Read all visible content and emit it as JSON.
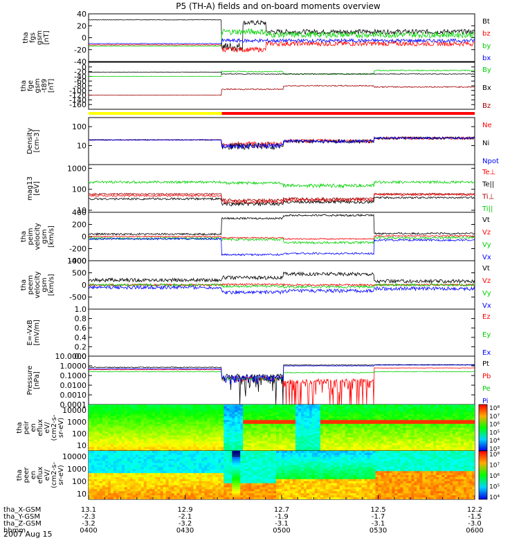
{
  "title": "P5 (TH-A) fields and on-board moments overview",
  "colors": {
    "black": "#000000",
    "red": "#ff0000",
    "green": "#00d000",
    "blue": "#0000ff",
    "darkred": "#a00000",
    "yellow": "#ffff00"
  },
  "chart_data": {
    "type": "line",
    "time_range": [
      "04:00",
      "06:00"
    ],
    "panels": [
      {
        "id": "fgs",
        "ylabel": [
          "tha",
          "fgs",
          "gsm",
          "[nT]"
        ],
        "ylim": [
          -40,
          40
        ],
        "ticks": [
          40,
          20,
          0,
          -20,
          -40
        ],
        "series": [
          {
            "name": "Bt",
            "color": "#000000"
          },
          {
            "name": "bz",
            "color": "#ff0000"
          },
          {
            "name": "by",
            "color": "#00d000"
          },
          {
            "name": "bx",
            "color": "#0000ff"
          }
        ]
      },
      {
        "id": "fge",
        "ylabel": [
          "tha",
          "fge",
          "gsm",
          "-t89",
          "[nT]"
        ],
        "ylim": [
          -180,
          20
        ],
        "ticks": [
          0,
          -20,
          -40,
          -60,
          -80,
          -100,
          -120,
          -140,
          -160
        ],
        "series": [
          {
            "name": "By",
            "color": "#00d000"
          },
          {
            "name": "Bx",
            "color": "#000000"
          },
          {
            "name": "Bz",
            "color": "#a00000"
          }
        ]
      },
      {
        "id": "density",
        "ylabel": [
          "Density",
          "[cm-3]"
        ],
        "ylim": [
          1,
          300
        ],
        "log": true,
        "ticks": [
          100,
          10
        ],
        "series": [
          {
            "name": "Ne",
            "color": "#ff0000"
          },
          {
            "name": "Ni",
            "color": "#000000"
          },
          {
            "name": "Npot",
            "color": "#0000ff"
          }
        ]
      },
      {
        "id": "temp",
        "ylabel": [
          "mag13",
          "[eV]"
        ],
        "ylim": [
          8,
          1500
        ],
        "log": true,
        "ticks": [
          1000,
          100,
          10
        ],
        "series": [
          {
            "name": "Te⊥",
            "color": "#ff0000"
          },
          {
            "name": "Te||",
            "color": "#000000"
          },
          {
            "name": "Ti⊥",
            "color": "#a00000"
          },
          {
            "name": "Ti||",
            "color": "#00d000"
          }
        ]
      },
      {
        "id": "peim",
        "ylabel": [
          "tha",
          "peim",
          "velocity",
          "gsm",
          "[km/s]"
        ],
        "ylim": [
          -400,
          400
        ],
        "ticks": [
          400,
          200,
          0,
          -200,
          -400
        ],
        "series": [
          {
            "name": "Vt",
            "color": "#000000"
          },
          {
            "name": "Vz",
            "color": "#ff0000"
          },
          {
            "name": "Vy",
            "color": "#00d000"
          },
          {
            "name": "Vx",
            "color": "#0000ff"
          }
        ]
      },
      {
        "id": "peem",
        "ylabel": [
          "tha",
          "peem",
          "velocity",
          "gsm",
          "[km/s]"
        ],
        "ylim": [
          -1000,
          1000
        ],
        "ticks": [
          1000,
          500,
          0,
          -500
        ],
        "series": [
          {
            "name": "Vt",
            "color": "#000000"
          },
          {
            "name": "Vz",
            "color": "#ff0000"
          },
          {
            "name": "Vy",
            "color": "#00d000"
          },
          {
            "name": "Vx",
            "color": "#0000ff"
          }
        ]
      },
      {
        "id": "efield",
        "ylabel": [
          "E=-VxB",
          "[mV/m]"
        ],
        "ylim": [
          0,
          1
        ],
        "ticks": [
          "1.0",
          "0.8",
          "0.6",
          "0.4",
          "0.2",
          "0.0"
        ],
        "series": [
          {
            "name": "Ez",
            "color": "#ff0000"
          },
          {
            "name": "Ey",
            "color": "#00d000"
          },
          {
            "name": "Ex",
            "color": "#0000ff"
          }
        ]
      },
      {
        "id": "pressure",
        "ylabel": [
          "Pressure",
          "[nPa]"
        ],
        "ylim": [
          0.0001,
          10
        ],
        "log": true,
        "ticks": [
          "10.0000",
          "1.0000",
          "0.1000",
          "0.0100",
          "0.0010",
          "0.0001"
        ],
        "series": [
          {
            "name": "Pt",
            "color": "#000000"
          },
          {
            "name": "Pb",
            "color": "#ff0000"
          },
          {
            "name": "Pe",
            "color": "#00d000"
          },
          {
            "name": "Pi",
            "color": "#0000ff"
          }
        ]
      },
      {
        "id": "peir",
        "ylabel": [
          "tha",
          "peir",
          "en",
          "eflux",
          "eV/",
          "(cm2-s-",
          "sr-eV)"
        ],
        "type": "heatmap",
        "ticks": [
          "10000",
          "1000",
          "100",
          "10"
        ],
        "colorbar": [
          "10⁸",
          "10⁷",
          "10⁶",
          "10⁵",
          "10⁴",
          "10³"
        ]
      },
      {
        "id": "peer",
        "ylabel": [
          "tha",
          "peer",
          "en",
          "eflux",
          "eV/",
          "(cm2-s-",
          "sr-eV)"
        ],
        "type": "heatmap",
        "ticks": [
          "10000",
          "1000",
          "100",
          "10"
        ],
        "colorbar": [
          "10⁸",
          "10⁷",
          "10⁶",
          "10⁵",
          "10⁴"
        ]
      }
    ],
    "xaxis": {
      "rows": [
        {
          "label": "tha_X-GSM",
          "values": [
            "13.1",
            "12.9",
            "12.7",
            "12.5",
            "12.2"
          ]
        },
        {
          "label": "tha_Y-GSM",
          "values": [
            "-2.3",
            "-2.1",
            "-1.9",
            "-1.7",
            "-1.5"
          ]
        },
        {
          "label": "tha_Z-GSM",
          "values": [
            "-3.2",
            "-3.2",
            "-3.1",
            "-3.1",
            "-3.0"
          ]
        },
        {
          "label": "hhmm",
          "values": [
            "0400",
            "0430",
            "0500",
            "0530",
            "0600"
          ]
        }
      ],
      "date": "2007 Aug 15"
    }
  }
}
